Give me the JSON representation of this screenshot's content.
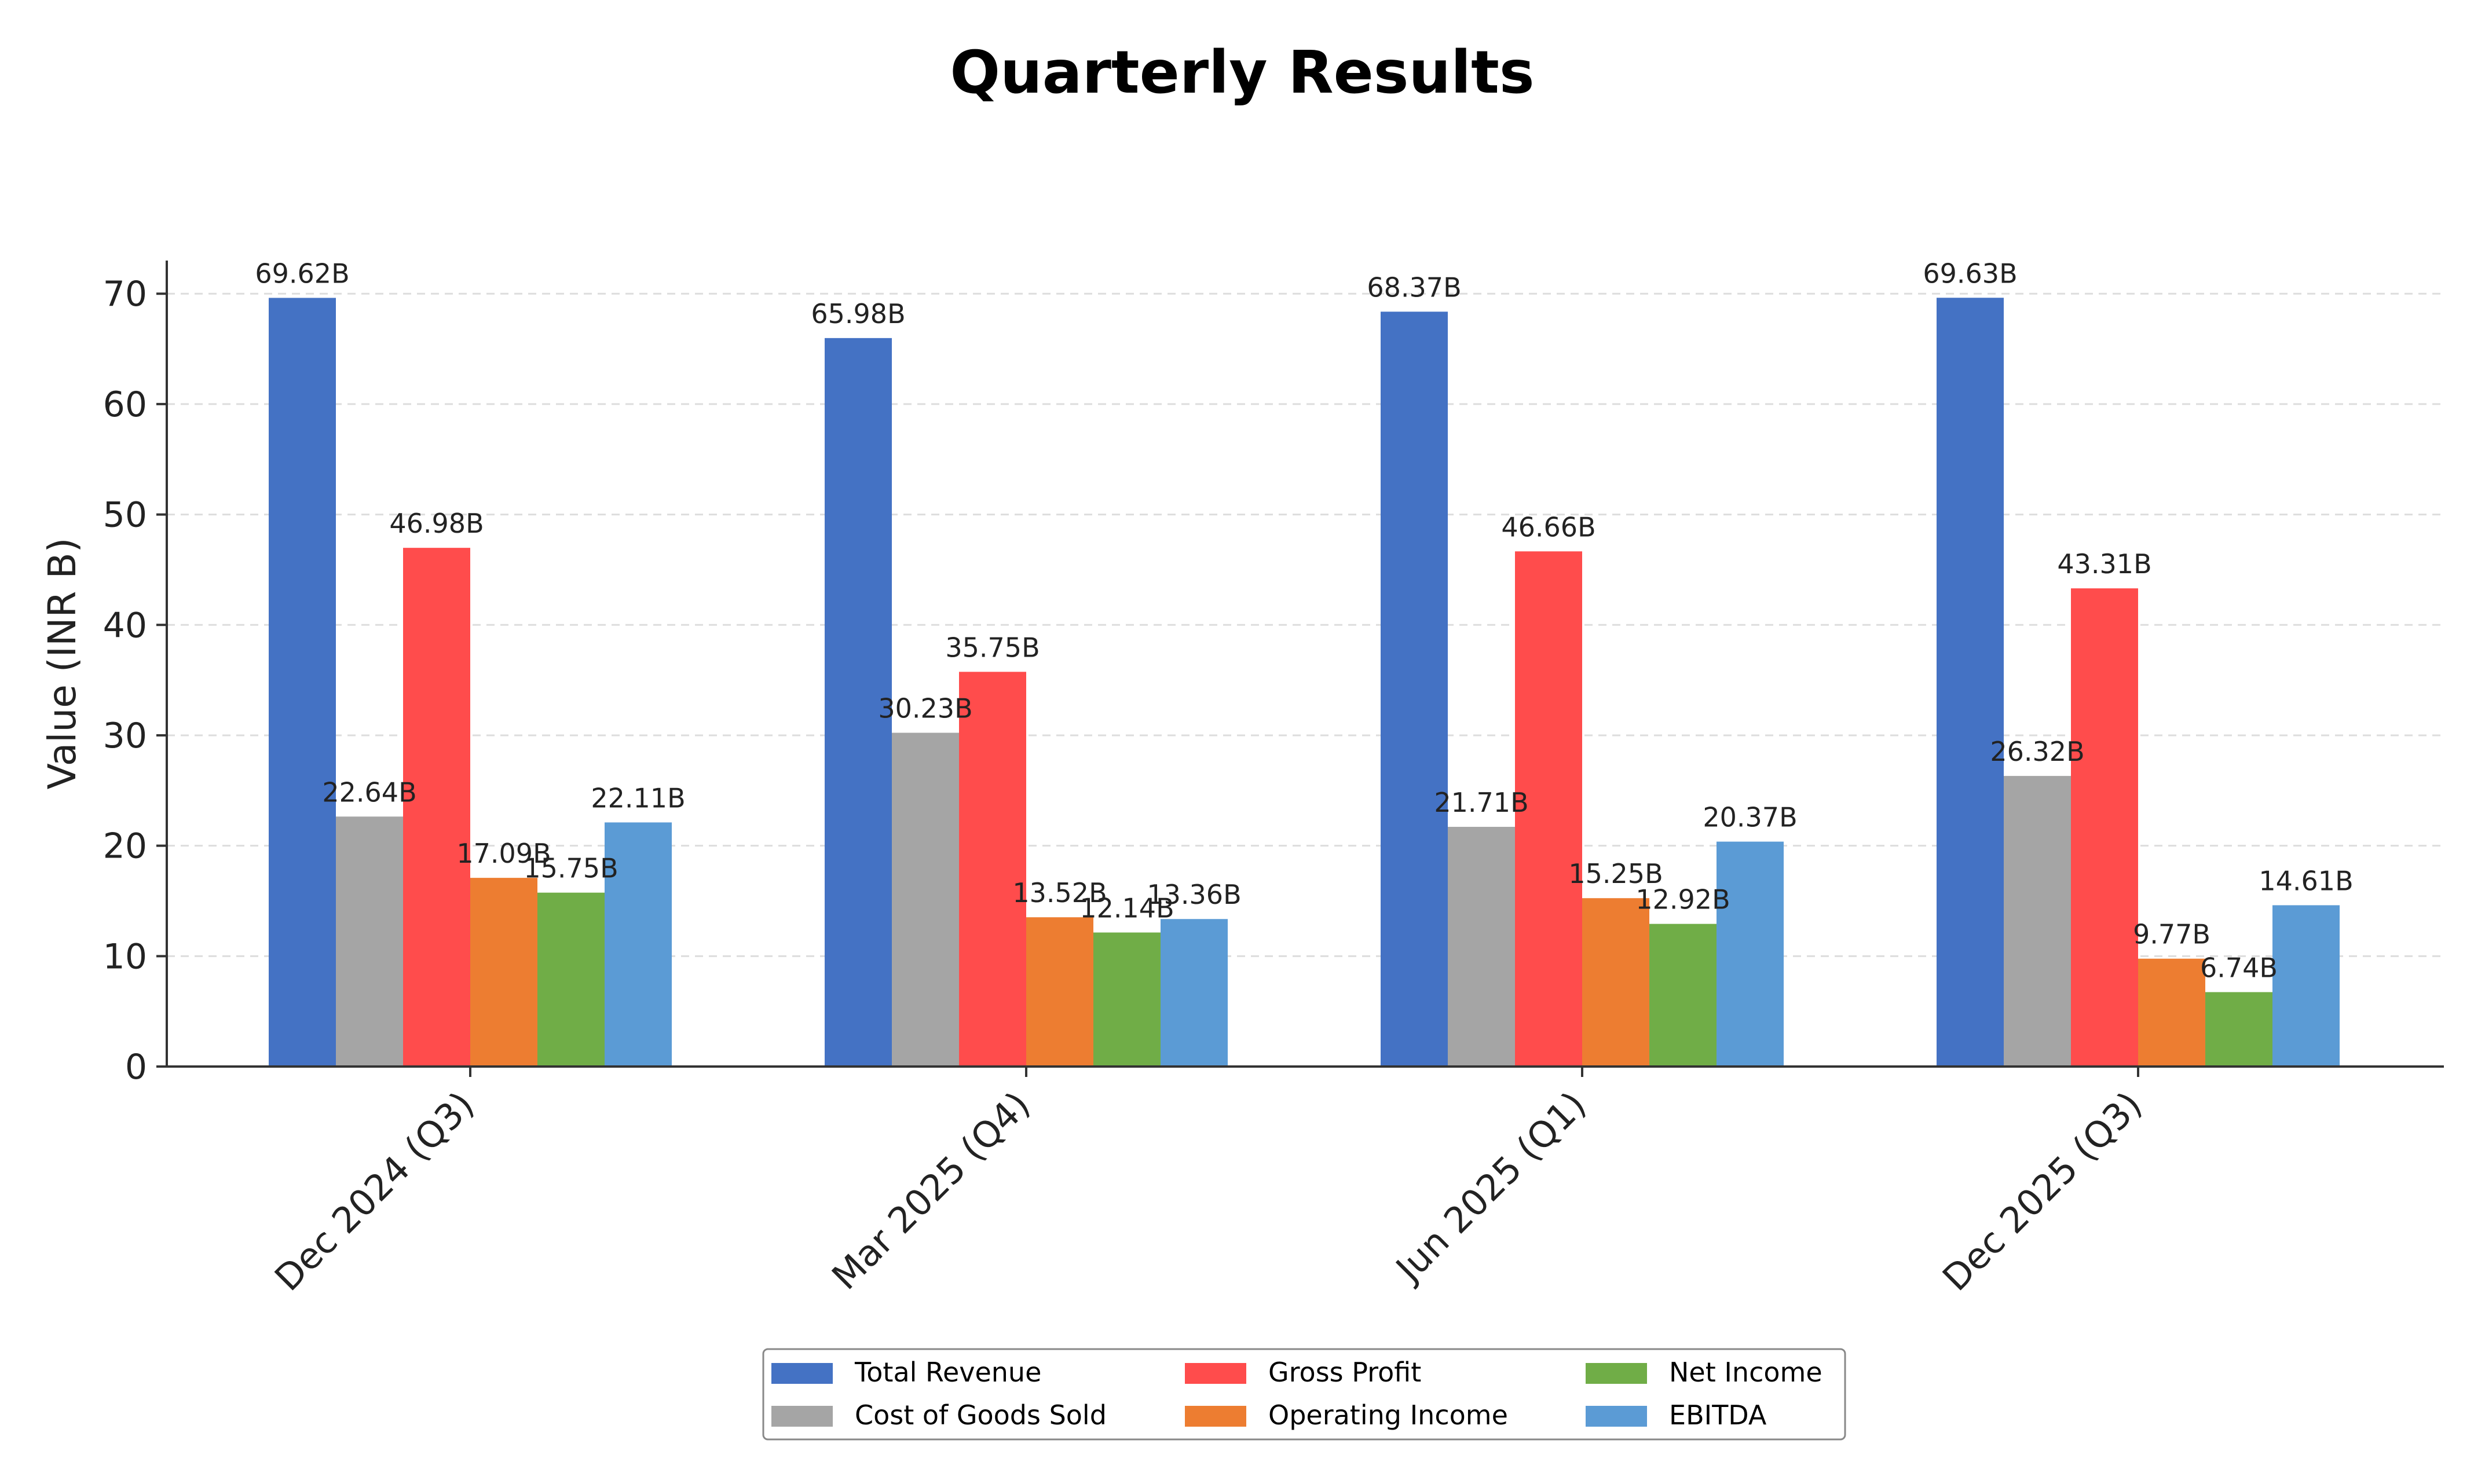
{
  "chart_data": {
    "type": "bar",
    "title": "Quarterly Results",
    "ylabel": "Value (INR B)",
    "xlabel": "",
    "ylim": [
      0,
      73
    ],
    "yticks": [
      0,
      10,
      20,
      30,
      40,
      50,
      60,
      70
    ],
    "grid": true,
    "legend_position": "bottom-center",
    "value_suffix": "B",
    "categories": [
      "Dec 2024 (Q3)",
      "Mar 2025 (Q4)",
      "Jun 2025 (Q1)",
      "Dec 2025 (Q3)"
    ],
    "series": [
      {
        "name": "Total Revenue",
        "color": "#4472C4",
        "values": [
          69.62,
          65.98,
          68.37,
          69.63
        ]
      },
      {
        "name": "Cost of Goods Sold",
        "color": "#A5A5A5",
        "values": [
          22.64,
          30.23,
          21.71,
          26.32
        ]
      },
      {
        "name": "Gross Profit",
        "color": "#FF4C4C",
        "values": [
          46.98,
          35.75,
          46.66,
          43.31
        ]
      },
      {
        "name": "Operating Income",
        "color": "#ED7D31",
        "values": [
          17.09,
          13.52,
          15.25,
          9.77
        ]
      },
      {
        "name": "Net Income",
        "color": "#70AD47",
        "values": [
          15.75,
          12.14,
          12.92,
          6.74
        ]
      },
      {
        "name": "EBITDA",
        "color": "#5B9BD5",
        "values": [
          22.11,
          13.36,
          20.37,
          14.61
        ]
      }
    ]
  }
}
